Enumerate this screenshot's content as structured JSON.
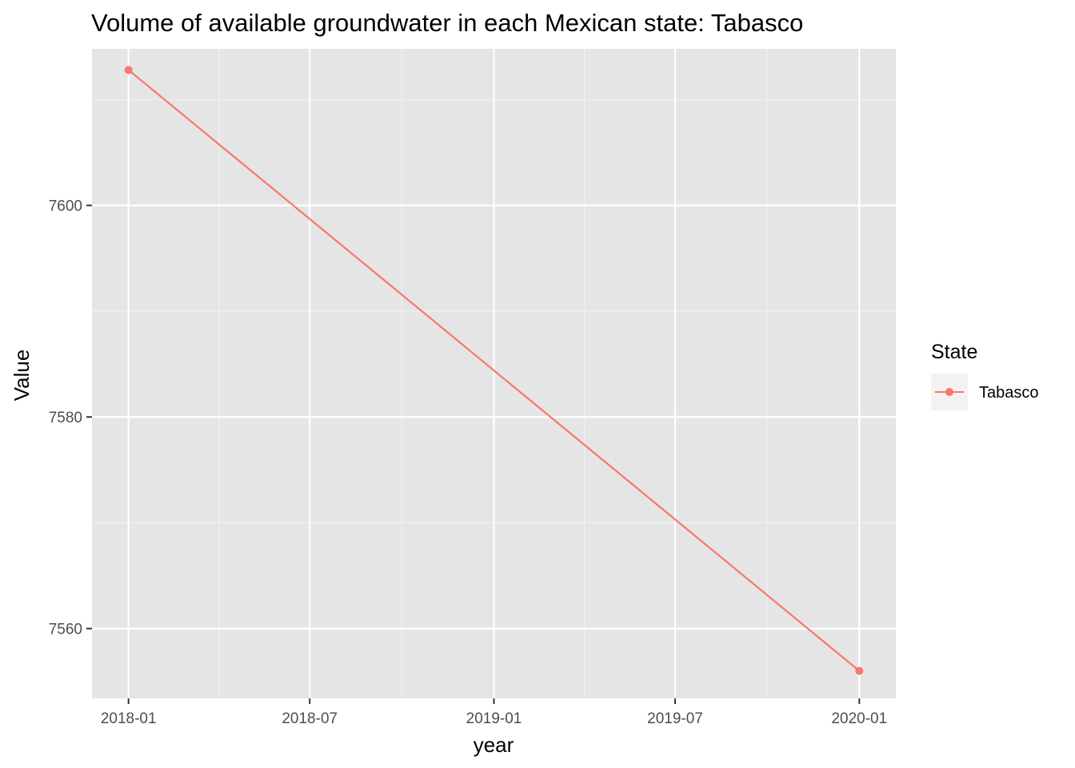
{
  "chart_data": {
    "type": "line",
    "title": "Volume of available groundwater in each Mexican state: Tabasco",
    "xlabel": "year",
    "ylabel": "Value",
    "x_tick_labels": [
      "2018-01",
      "2018-07",
      "2019-01",
      "2019-07",
      "2020-01"
    ],
    "y_tick_labels": [
      "7560",
      "7580",
      "7600"
    ],
    "y_ticks": [
      7560,
      7580,
      7600
    ],
    "ylim": [
      7553.4,
      7614.8
    ],
    "grid": true,
    "legend": {
      "title": "State",
      "position": "right",
      "entries": [
        "Tabasco"
      ]
    },
    "series": [
      {
        "name": "Tabasco",
        "color": "#F8766D",
        "x": [
          "2018-01",
          "2020-01"
        ],
        "values": [
          7612.8,
          7556.0
        ]
      }
    ],
    "colors": {
      "panel_background": "#E5E5E5",
      "grid_major": "#FFFFFF",
      "grid_minor": "#F2F2F2",
      "tick_text": "#4D4D4D"
    }
  }
}
